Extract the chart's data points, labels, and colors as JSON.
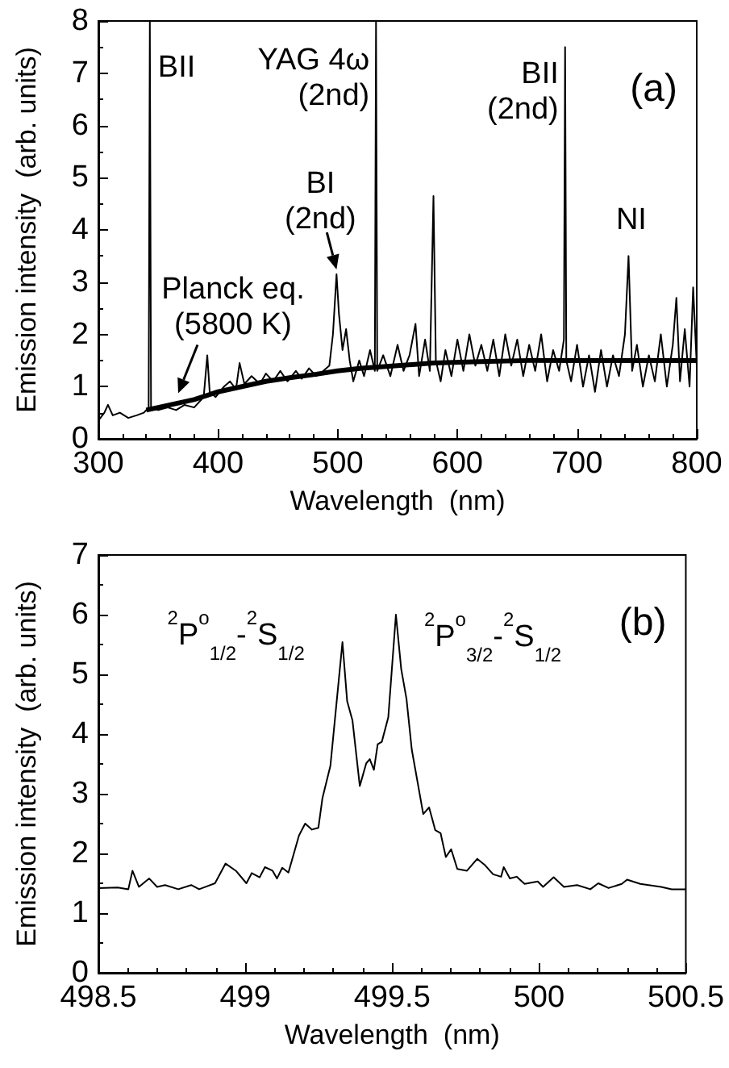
{
  "chart_data": [
    {
      "type": "line",
      "xlabel": "Wavelength  (nm)",
      "ylabel": "Emission intensity  (arb. units)",
      "xlim": [
        300,
        800
      ],
      "xticks": [
        300,
        400,
        500,
        600,
        700,
        800
      ],
      "ylim": [
        0,
        8
      ],
      "yticks": [
        0,
        1,
        2,
        3,
        4,
        5,
        6,
        7,
        8
      ],
      "grid": false,
      "marker": "none",
      "series": [
        {
          "color": "#000000",
          "x": [
            300,
            305,
            308,
            312,
            318,
            325,
            332,
            338,
            342,
            343,
            344,
            350,
            358,
            365,
            372,
            380,
            388,
            391,
            393,
            398,
            405,
            410,
            415,
            418,
            422,
            428,
            435,
            440,
            446,
            452,
            458,
            465,
            470,
            476,
            482,
            488,
            493,
            496,
            499,
            501,
            504,
            507,
            510,
            513,
            518,
            522,
            527,
            531,
            532,
            533,
            538,
            544,
            550,
            555,
            560,
            565,
            568,
            573,
            577,
            580,
            582,
            586,
            590,
            595,
            600,
            605,
            610,
            615,
            620,
            625,
            630,
            635,
            640,
            645,
            650,
            655,
            660,
            665,
            670,
            675,
            680,
            685,
            689,
            690,
            691,
            695,
            700,
            705,
            710,
            715,
            720,
            725,
            730,
            735,
            740,
            743,
            746,
            750,
            755,
            760,
            765,
            770,
            775,
            780,
            783,
            786,
            790,
            794,
            797,
            800
          ],
          "values": [
            0.35,
            0.5,
            0.65,
            0.45,
            0.5,
            0.4,
            0.45,
            0.5,
            0.6,
            8,
            0.6,
            0.55,
            0.6,
            0.55,
            0.65,
            0.6,
            0.8,
            1.6,
            0.9,
            0.8,
            1.0,
            1.1,
            0.95,
            1.45,
            1.05,
            1.2,
            1.05,
            1.25,
            1.1,
            1.3,
            1.1,
            1.3,
            1.15,
            1.35,
            1.2,
            1.3,
            1.4,
            2.0,
            3.15,
            2.4,
            1.7,
            2.1,
            1.5,
            1.1,
            1.5,
            1.2,
            1.7,
            1.3,
            8,
            1.3,
            1.6,
            1.2,
            1.8,
            1.3,
            1.6,
            2.2,
            1.2,
            1.9,
            1.3,
            4.65,
            1.5,
            1.1,
            1.7,
            1.2,
            1.9,
            1.3,
            2.0,
            1.4,
            1.8,
            1.3,
            1.9,
            1.2,
            2.0,
            1.4,
            1.9,
            1.2,
            1.8,
            1.3,
            2.0,
            1.1,
            1.7,
            1.3,
            1.9,
            7.5,
            1.5,
            1.1,
            1.8,
            1.0,
            1.6,
            0.9,
            1.7,
            1.0,
            1.6,
            1.2,
            2.0,
            3.5,
            1.3,
            1.8,
            1.0,
            1.6,
            1.1,
            2.0,
            1.0,
            1.8,
            2.7,
            1.1,
            2.1,
            1.0,
            2.9,
            1.4
          ]
        },
        {
          "color": "#000000",
          "x": [
            340,
            360,
            380,
            400,
            420,
            440,
            460,
            480,
            500,
            520,
            550,
            580,
            620,
            660,
            700,
            750,
            800
          ],
          "values": [
            0.55,
            0.65,
            0.75,
            0.9,
            1.0,
            1.1,
            1.17,
            1.23,
            1.3,
            1.35,
            1.4,
            1.45,
            1.48,
            1.5,
            1.5,
            1.5,
            1.5
          ]
        }
      ],
      "annotations": [
        {
          "text": "BII",
          "x": 343,
          "y": 7.1
        },
        {
          "text": "YAG 4ω\n(2nd)",
          "x": 532,
          "y": 6.9
        },
        {
          "text": "BII\n(2nd)",
          "x": 690,
          "y": 6.64
        },
        {
          "text": "BI\n(2nd)",
          "x": 499,
          "y": 3.15
        },
        {
          "text": "NI",
          "x": 744,
          "y": 3.5
        },
        {
          "text": "Planck eq.\n(5800 K)",
          "x": 364,
          "y": 0.75
        },
        "(a)"
      ]
    },
    {
      "type": "line",
      "xlabel": "Wavelength  (nm)",
      "ylabel": "Emission intensity  (arb. units)",
      "xlim": [
        498.5,
        500.5
      ],
      "xticks": [
        498.5,
        499,
        499.5,
        500,
        500.5
      ],
      "ylim": [
        0,
        7
      ],
      "yticks": [
        0,
        1,
        2,
        3,
        4,
        5,
        6,
        7
      ],
      "grid": false,
      "marker": "none",
      "series": [
        {
          "color": "#000000",
          "x": [
            498.5,
            498.566,
            498.602,
            498.616,
            498.638,
            498.673,
            498.7,
            498.727,
            498.772,
            498.816,
            498.843,
            498.897,
            498.933,
            498.968,
            499.004,
            499.022,
            499.049,
            499.067,
            499.093,
            499.108,
            499.126,
            499.147,
            499.183,
            499.204,
            499.227,
            499.249,
            499.263,
            499.29,
            499.331,
            499.347,
            499.365,
            499.39,
            499.412,
            499.424,
            499.438,
            499.451,
            499.465,
            499.487,
            499.513,
            499.531,
            499.549,
            499.567,
            499.606,
            499.626,
            499.647,
            499.665,
            499.683,
            499.701,
            499.722,
            499.755,
            499.79,
            499.817,
            499.844,
            499.871,
            499.88,
            499.901,
            499.924,
            499.951,
            499.996,
            500.014,
            500.05,
            500.085,
            500.13,
            500.175,
            500.202,
            500.237,
            500.282,
            500.3,
            500.345,
            500.416,
            500.452,
            500.5
          ],
          "values": [
            1.42,
            1.43,
            1.4,
            1.71,
            1.44,
            1.58,
            1.44,
            1.47,
            1.4,
            1.47,
            1.4,
            1.5,
            1.83,
            1.71,
            1.5,
            1.67,
            1.6,
            1.77,
            1.71,
            1.58,
            1.76,
            1.68,
            2.3,
            2.5,
            2.4,
            2.43,
            2.93,
            3.47,
            5.54,
            4.55,
            4.23,
            3.13,
            3.51,
            3.58,
            3.4,
            3.83,
            3.87,
            4.28,
            6.0,
            5.09,
            4.59,
            3.74,
            2.66,
            2.77,
            2.39,
            2.34,
            1.94,
            2.07,
            1.74,
            1.71,
            1.91,
            1.8,
            1.65,
            1.61,
            1.77,
            1.58,
            1.61,
            1.49,
            1.53,
            1.44,
            1.6,
            1.44,
            1.47,
            1.4,
            1.5,
            1.42,
            1.49,
            1.56,
            1.49,
            1.44,
            1.4,
            1.4
          ]
        }
      ],
      "annotations": [
        {
          "text": "$^{2}$P$^{o}$$_{1/2}$-$^{2}$S$_{1/2}$",
          "x": 499.331,
          "y": 5.54
        },
        {
          "text": "$^{2}$P$^{o}$$_{3/2}$-$^{2}$S$_{1/2}$",
          "x": 499.513,
          "y": 6.0
        },
        "(b)"
      ]
    }
  ]
}
